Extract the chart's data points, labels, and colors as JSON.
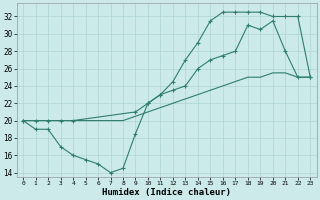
{
  "xlabel": "Humidex (Indice chaleur)",
  "background_color": "#cdeaea",
  "grid_color": "#aed4d4",
  "line_color": "#2e7d6e",
  "xlim": [
    -0.5,
    23.5
  ],
  "ylim": [
    13.5,
    33.5
  ],
  "xticks": [
    0,
    1,
    2,
    3,
    4,
    5,
    6,
    7,
    8,
    9,
    10,
    11,
    12,
    13,
    14,
    15,
    16,
    17,
    18,
    19,
    20,
    21,
    22,
    23
  ],
  "yticks": [
    14,
    16,
    18,
    20,
    22,
    24,
    26,
    28,
    30,
    32
  ],
  "series1_x": [
    0,
    1,
    2,
    3,
    4,
    9,
    10,
    11,
    12,
    13,
    14,
    15,
    16,
    17,
    18,
    19,
    20,
    21,
    22,
    23
  ],
  "series1_y": [
    20,
    20,
    20,
    20,
    20,
    21,
    22,
    23,
    24.5,
    27,
    29,
    31.5,
    32.5,
    32.5,
    32.5,
    32.5,
    32,
    32,
    32,
    25
  ],
  "series2_x": [
    0,
    1,
    2,
    3,
    4,
    5,
    6,
    7,
    8,
    9,
    10,
    11,
    12,
    13,
    14,
    15,
    16,
    17,
    18,
    19,
    20,
    21,
    22,
    23
  ],
  "series2_y": [
    20,
    19,
    19,
    17,
    16,
    15.5,
    15,
    14,
    14.5,
    18.5,
    22,
    23,
    23.5,
    24,
    26,
    27,
    27.5,
    28,
    31,
    30.5,
    31.5,
    28,
    25,
    25
  ],
  "series3_x": [
    0,
    1,
    2,
    3,
    4,
    5,
    6,
    7,
    8,
    9,
    10,
    11,
    12,
    13,
    14,
    15,
    16,
    17,
    18,
    19,
    20,
    21,
    22,
    23
  ],
  "series3_y": [
    20,
    20,
    20,
    20,
    20,
    20,
    20,
    20,
    20,
    20.5,
    21,
    21.5,
    22,
    22.5,
    23,
    23.5,
    24,
    24.5,
    25,
    25,
    25.5,
    25.5,
    25,
    25
  ]
}
